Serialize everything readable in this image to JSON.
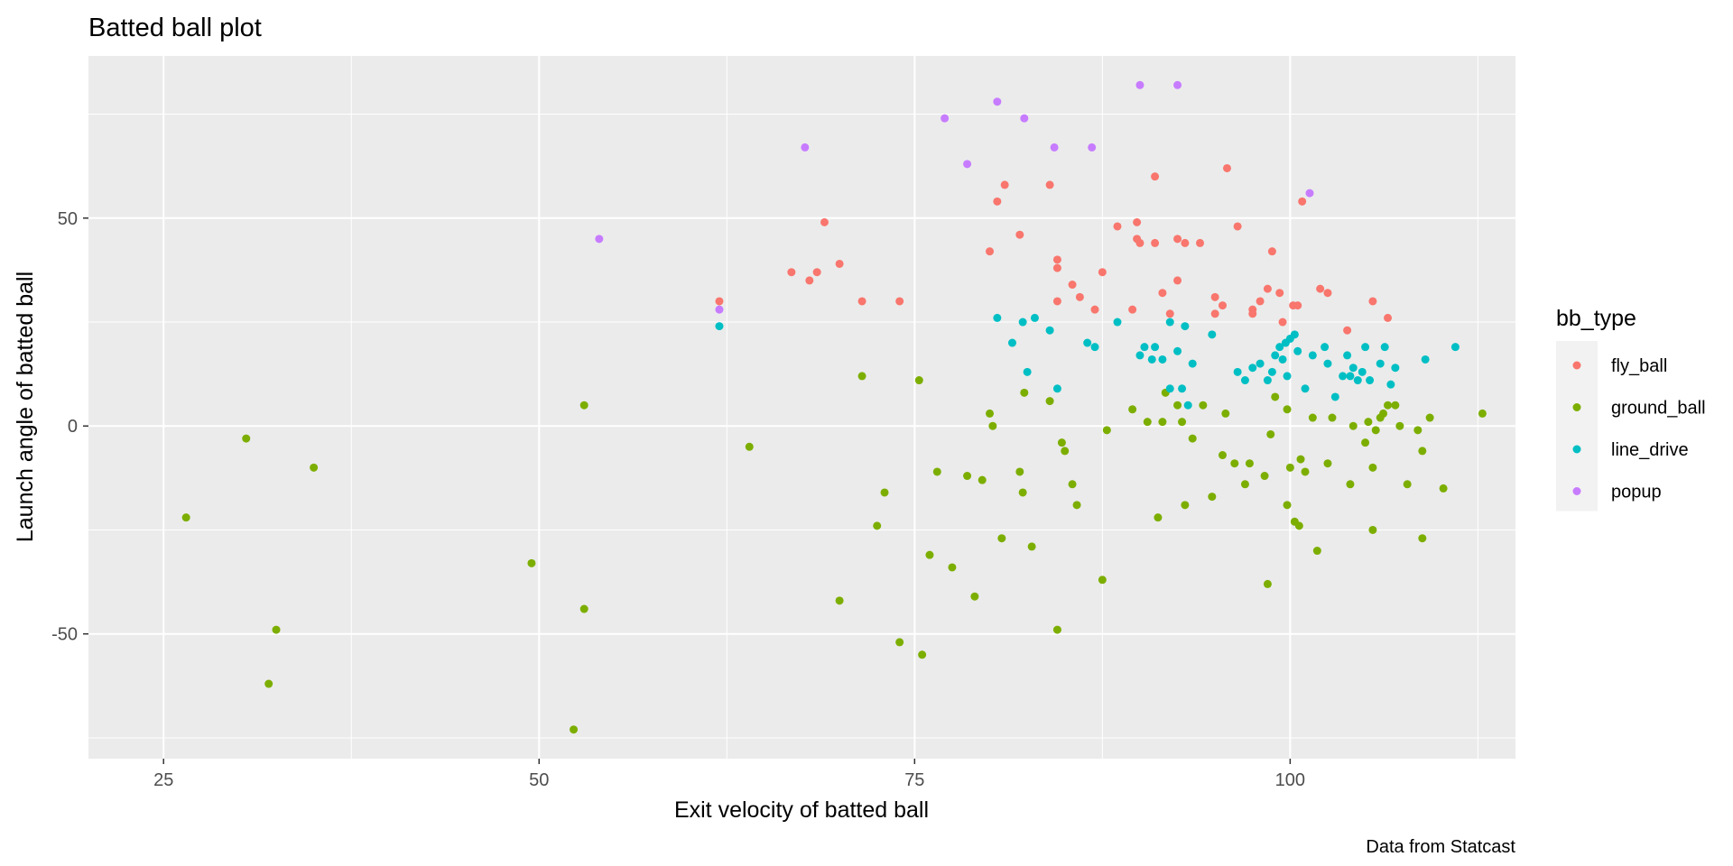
{
  "chart_data": {
    "type": "scatter",
    "title": "Batted ball plot",
    "xlabel": "Exit velocity of batted ball",
    "ylabel": "Launch angle of batted ball",
    "caption": "Data from Statcast",
    "xlim": [
      20,
      115
    ],
    "ylim": [
      -80,
      89
    ],
    "x_ticks": [
      25,
      50,
      75,
      100
    ],
    "y_ticks": [
      -50,
      0,
      50
    ],
    "x_minor": [
      37.5,
      62.5,
      87.5,
      112.5
    ],
    "y_minor": [
      -75,
      -25,
      25,
      75
    ],
    "grid": true,
    "legend": {
      "title": "bb_type",
      "position": "right"
    },
    "series": [
      {
        "name": "fly_ball",
        "color": "#F8766D",
        "points": [
          [
            62,
            30
          ],
          [
            66.8,
            37
          ],
          [
            68,
            35
          ],
          [
            68.5,
            37
          ],
          [
            69,
            49
          ],
          [
            70,
            39
          ],
          [
            71.5,
            30
          ],
          [
            74,
            30
          ],
          [
            80,
            42
          ],
          [
            80.5,
            54
          ],
          [
            81,
            58
          ],
          [
            82,
            46
          ],
          [
            84,
            58
          ],
          [
            84.5,
            40
          ],
          [
            84.5,
            38
          ],
          [
            84.5,
            30
          ],
          [
            85.5,
            34
          ],
          [
            86,
            31
          ],
          [
            87,
            28
          ],
          [
            87.5,
            37
          ],
          [
            88.5,
            48
          ],
          [
            89.5,
            28
          ],
          [
            89.8,
            49
          ],
          [
            89.8,
            45
          ],
          [
            90,
            44
          ],
          [
            91,
            60
          ],
          [
            91,
            44
          ],
          [
            91.5,
            32
          ],
          [
            92,
            27
          ],
          [
            92.5,
            45
          ],
          [
            92.5,
            35
          ],
          [
            93,
            44
          ],
          [
            94,
            44
          ],
          [
            95,
            31
          ],
          [
            95,
            27
          ],
          [
            95.5,
            29
          ],
          [
            95.8,
            62
          ],
          [
            96.5,
            48
          ],
          [
            97.5,
            28
          ],
          [
            97.5,
            27
          ],
          [
            98,
            30
          ],
          [
            98.5,
            33
          ],
          [
            98.8,
            42
          ],
          [
            99.3,
            32
          ],
          [
            99.5,
            25
          ],
          [
            100.2,
            29
          ],
          [
            100.5,
            29
          ],
          [
            100.8,
            54
          ],
          [
            102,
            33
          ],
          [
            102.5,
            32
          ],
          [
            103.8,
            23
          ],
          [
            105.5,
            30
          ],
          [
            106.5,
            26
          ]
        ]
      },
      {
        "name": "ground_ball",
        "color": "#7CAE00",
        "points": [
          [
            26.5,
            -22
          ],
          [
            30.5,
            -3
          ],
          [
            32,
            -62
          ],
          [
            32.5,
            -49
          ],
          [
            35,
            -10
          ],
          [
            49.5,
            -33
          ],
          [
            52.3,
            -73
          ],
          [
            53,
            -44
          ],
          [
            53,
            5
          ],
          [
            64,
            -5
          ],
          [
            70,
            -42
          ],
          [
            71.5,
            12
          ],
          [
            72.5,
            -24
          ],
          [
            73,
            -16
          ],
          [
            74,
            -52
          ],
          [
            75.3,
            11
          ],
          [
            75.5,
            -55
          ],
          [
            76,
            -31
          ],
          [
            76.5,
            -11
          ],
          [
            77.5,
            -34
          ],
          [
            78.5,
            -12
          ],
          [
            79,
            -41
          ],
          [
            79.5,
            -13
          ],
          [
            80,
            3
          ],
          [
            80.2,
            0
          ],
          [
            80.8,
            -27
          ],
          [
            82,
            -11
          ],
          [
            82.2,
            -16
          ],
          [
            82.3,
            8
          ],
          [
            82.8,
            -29
          ],
          [
            84,
            6
          ],
          [
            84.5,
            -49
          ],
          [
            84.8,
            -4
          ],
          [
            85,
            -6
          ],
          [
            85.5,
            -14
          ],
          [
            85.8,
            -19
          ],
          [
            87.5,
            -37
          ],
          [
            87.8,
            -1
          ],
          [
            89.5,
            4
          ],
          [
            90.5,
            1
          ],
          [
            91.2,
            -22
          ],
          [
            91.5,
            1
          ],
          [
            91.7,
            8
          ],
          [
            92.5,
            5
          ],
          [
            92.8,
            1
          ],
          [
            93,
            -19
          ],
          [
            93.5,
            -3
          ],
          [
            94.2,
            5
          ],
          [
            94.8,
            -17
          ],
          [
            95.5,
            -7
          ],
          [
            95.7,
            3
          ],
          [
            96.3,
            -9
          ],
          [
            97,
            -14
          ],
          [
            97.3,
            -9
          ],
          [
            98.3,
            -12
          ],
          [
            98.5,
            -38
          ],
          [
            98.7,
            -2
          ],
          [
            99,
            7
          ],
          [
            99.8,
            4
          ],
          [
            99.8,
            -19
          ],
          [
            100,
            -10
          ],
          [
            100.3,
            -23
          ],
          [
            100.6,
            -24
          ],
          [
            100.7,
            -8
          ],
          [
            101,
            -11
          ],
          [
            101.5,
            2
          ],
          [
            101.8,
            -30
          ],
          [
            102.5,
            -9
          ],
          [
            102.8,
            2
          ],
          [
            104,
            -14
          ],
          [
            104.2,
            0
          ],
          [
            105,
            -4
          ],
          [
            105.2,
            1
          ],
          [
            105.5,
            -10
          ],
          [
            105.5,
            -25
          ],
          [
            105.7,
            -1
          ],
          [
            106,
            2
          ],
          [
            106.2,
            3
          ],
          [
            106.5,
            5
          ],
          [
            107,
            5
          ],
          [
            107.3,
            0
          ],
          [
            107.8,
            -14
          ],
          [
            108.5,
            -1
          ],
          [
            108.8,
            -6
          ],
          [
            108.8,
            -27
          ],
          [
            109.3,
            2
          ],
          [
            110.2,
            -15
          ],
          [
            112.8,
            3
          ]
        ]
      },
      {
        "name": "line_drive",
        "color": "#00BFC4",
        "points": [
          [
            62,
            24
          ],
          [
            80.5,
            26
          ],
          [
            81.5,
            20
          ],
          [
            82.2,
            25
          ],
          [
            82.5,
            13
          ],
          [
            83,
            26
          ],
          [
            84,
            23
          ],
          [
            84.5,
            9
          ],
          [
            86.5,
            20
          ],
          [
            87,
            19
          ],
          [
            88.5,
            25
          ],
          [
            90,
            17
          ],
          [
            90.3,
            19
          ],
          [
            90.8,
            16
          ],
          [
            91,
            19
          ],
          [
            91.5,
            16
          ],
          [
            92,
            25
          ],
          [
            92,
            9
          ],
          [
            92.5,
            18
          ],
          [
            92.8,
            9
          ],
          [
            93,
            24
          ],
          [
            93.2,
            5
          ],
          [
            93.5,
            15
          ],
          [
            94.8,
            22
          ],
          [
            96.5,
            13
          ],
          [
            97,
            11
          ],
          [
            97.5,
            14
          ],
          [
            98,
            15
          ],
          [
            98.5,
            11
          ],
          [
            98.8,
            13
          ],
          [
            99,
            17
          ],
          [
            99.3,
            19
          ],
          [
            99.5,
            16
          ],
          [
            99.7,
            20
          ],
          [
            99.8,
            12
          ],
          [
            100,
            21
          ],
          [
            100.3,
            22
          ],
          [
            100.5,
            18
          ],
          [
            101,
            9
          ],
          [
            101.5,
            17
          ],
          [
            102.3,
            19
          ],
          [
            102.5,
            15
          ],
          [
            103,
            7
          ],
          [
            103.5,
            12
          ],
          [
            103.8,
            17
          ],
          [
            104,
            12
          ],
          [
            104.2,
            14
          ],
          [
            104.5,
            11
          ],
          [
            104.8,
            13
          ],
          [
            105,
            19
          ],
          [
            105.3,
            11
          ],
          [
            106,
            15
          ],
          [
            106.3,
            19
          ],
          [
            106.7,
            10
          ],
          [
            107,
            14
          ],
          [
            109,
            16
          ],
          [
            111,
            19
          ]
        ]
      },
      {
        "name": "popup",
        "color": "#C77CFF",
        "points": [
          [
            54,
            45
          ],
          [
            62,
            28
          ],
          [
            67.7,
            67
          ],
          [
            77,
            74
          ],
          [
            78.5,
            63
          ],
          [
            80.5,
            78
          ],
          [
            82.3,
            74
          ],
          [
            84.3,
            67
          ],
          [
            86.8,
            67
          ],
          [
            90,
            82
          ],
          [
            92.5,
            82
          ],
          [
            101.3,
            56
          ]
        ]
      }
    ]
  }
}
